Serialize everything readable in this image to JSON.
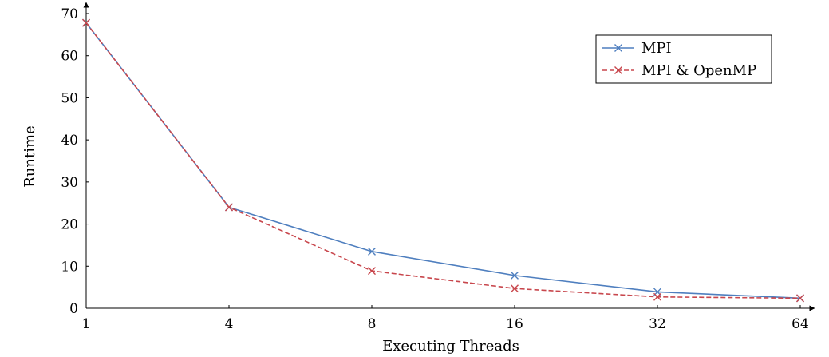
{
  "chart_data": {
    "type": "line",
    "title": "",
    "xlabel": "Executing Threads",
    "ylabel": "Runtime",
    "x": [
      "1",
      "4",
      "8",
      "16",
      "32",
      "64"
    ],
    "ylim": [
      0,
      70
    ],
    "yticks": [
      0,
      10,
      20,
      30,
      40,
      50,
      60,
      70
    ],
    "legend_position": "top-right",
    "grid": false,
    "series": [
      {
        "name": "MPI",
        "values": [
          67.8,
          24.0,
          13.5,
          7.8,
          3.9,
          2.4
        ],
        "color": "#4f7fbf",
        "line_style": "solid",
        "marker": "x-icon"
      },
      {
        "name": "MPI & OpenMP",
        "values": [
          67.8,
          24.0,
          8.9,
          4.7,
          2.7,
          2.4
        ],
        "color": "#c8474d",
        "line_style": "dashed",
        "marker": "x-icon"
      }
    ]
  }
}
